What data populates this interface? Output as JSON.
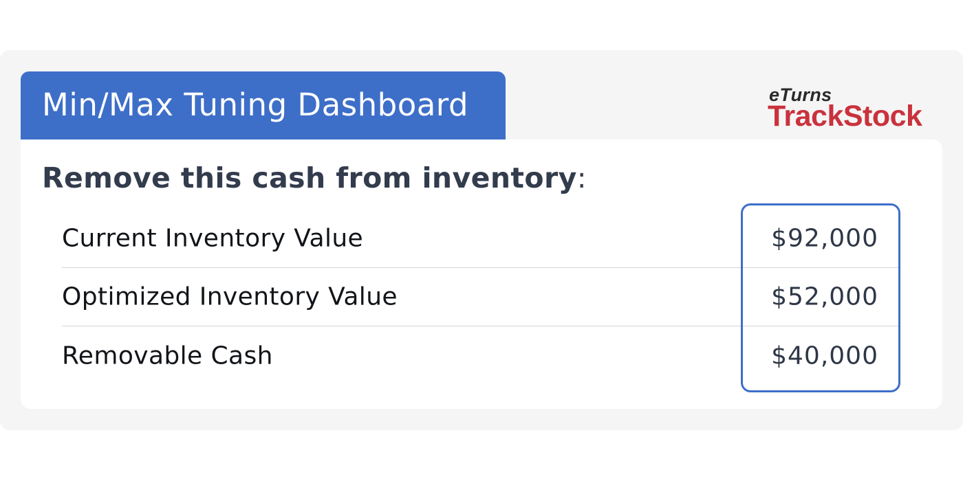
{
  "header": {
    "title": "Min/Max Tuning Dashboard"
  },
  "logo": {
    "small_prefix": "e",
    "small_rest": "Turns",
    "big": "TrackStock",
    "color": "#c9323d"
  },
  "card": {
    "heading": "Remove this cash from inventory",
    "heading_suffix": ":",
    "rows": [
      {
        "label": "Current Inventory Value",
        "value": "$92,000"
      },
      {
        "label": "Optimized Inventory Value",
        "value": "$52,000"
      },
      {
        "label": "Removable Cash",
        "value": "$40,000"
      }
    ]
  },
  "colors": {
    "accent": "#3d6ec8",
    "heading": "#333c4d",
    "background": "#f5f5f5"
  }
}
